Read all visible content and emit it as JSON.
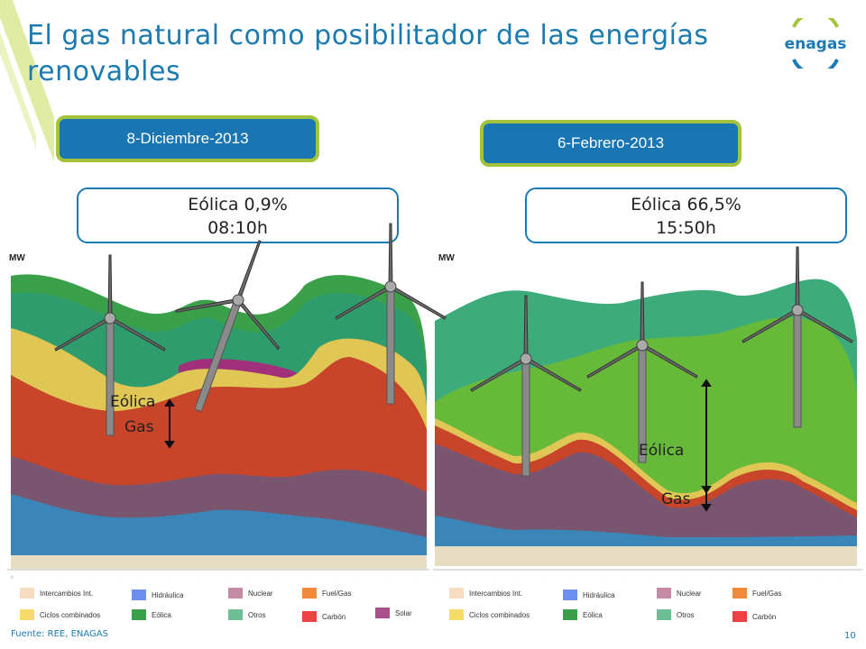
{
  "title": "El gas natural como posibilitador de las energías renovables",
  "logo_text": "enagas",
  "left": {
    "date": "8-Diciembre-2013",
    "info_line1": "Eólica 0,9%",
    "info_line2": "08:10h",
    "axis_label": "MW",
    "annot_eolica": "Eólica",
    "annot_gas": "Gas"
  },
  "right": {
    "date": "6-Febrero-2013",
    "info_line1": "Eólica 66,5%",
    "info_line2": "15:50h",
    "axis_label": "MW",
    "annot_eolica": "Eólica",
    "annot_gas": "Gas"
  },
  "legend_left": [
    {
      "label": "Intercambios Int.",
      "color": "#f6dcc0"
    },
    {
      "label": "Hidráulica",
      "color": "#6a8ff0"
    },
    {
      "label": "Nuclear",
      "color": "#c48aa6"
    },
    {
      "label": "Fuel/Gas",
      "color": "#f08a3a"
    },
    {
      "label": "Ciclos combinados",
      "color": "#f5dc6a"
    },
    {
      "label": "Eólica",
      "color": "#3aa04a"
    },
    {
      "label": "Otros",
      "color": "#6ebf96"
    },
    {
      "label": "Carbón",
      "color": "#ee4242"
    },
    {
      "label": "Solar",
      "color": "#a8508a"
    }
  ],
  "legend_right": [
    {
      "label": "Intercambios Int.",
      "color": "#f6dcc0"
    },
    {
      "label": "Hidráulica",
      "color": "#6a8ff0"
    },
    {
      "label": "Nuclear",
      "color": "#c48aa6"
    },
    {
      "label": "Fuel/Gas",
      "color": "#f08a3a"
    },
    {
      "label": "Ciclos combinados",
      "color": "#f5dc6a"
    },
    {
      "label": "Eólica",
      "color": "#3aa04a"
    },
    {
      "label": "Otros",
      "color": "#6ebf96"
    },
    {
      "label": "Carbón",
      "color": "#ee4242"
    }
  ],
  "colors": {
    "eolica": "#3aa04a",
    "otros": "#3dac7a",
    "ciclos": "#dfc655",
    "carbon": "#c8452a",
    "nuclear": "#7a5570",
    "hidraulica": "#3a86b8",
    "solar": "#a0307a",
    "intercambios": "#e5dcc2",
    "fuelgas": "#d8882f"
  },
  "footer": "Fuente: REE, ENAGAS",
  "page_number": "10"
}
